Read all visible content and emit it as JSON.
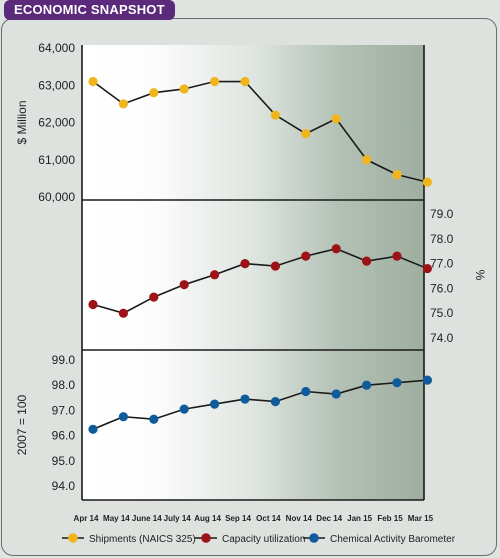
{
  "header": {
    "title": "ECONOMIC SNAPSHOT"
  },
  "chart_data": {
    "type": "line",
    "categories": [
      "Apr 14",
      "May 14",
      "June 14",
      "July 14",
      "Aug 14",
      "Sep 14",
      "Oct 14",
      "Nov 14",
      "Dec 14",
      "Jan 15",
      "Feb 15",
      "Mar 15"
    ],
    "panels": [
      {
        "series_name": "Shipments (NAICS 325)",
        "color": "#f0b51c",
        "axis_side": "left",
        "ylabel": "$ Million",
        "ylim": [
          60000,
          64000
        ],
        "ticks": [
          60000,
          61000,
          62000,
          63000,
          64000
        ],
        "tick_labels": [
          "60,000",
          "61,000",
          "62,000",
          "63,000",
          "64,000"
        ],
        "values": [
          63100,
          62500,
          62800,
          62900,
          63100,
          63100,
          62200,
          61700,
          62100,
          61000,
          60600,
          60400
        ]
      },
      {
        "series_name": "Capacity utilization",
        "color": "#9c1216",
        "axis_side": "right",
        "ylabel": "%",
        "ylim": [
          74.0,
          79.0
        ],
        "ticks": [
          74.0,
          75.0,
          76.0,
          77.0,
          78.0,
          79.0
        ],
        "tick_labels": [
          "74.0",
          "75.0",
          "76.0",
          "77.0",
          "78.0",
          "79.0"
        ],
        "values": [
          75.35,
          75.0,
          75.65,
          76.15,
          76.55,
          77.0,
          76.9,
          77.3,
          77.6,
          77.1,
          77.3,
          76.8
        ]
      },
      {
        "series_name": "Chemical Activity Barometer",
        "color": "#0f5b9c",
        "axis_side": "left",
        "ylabel": "2007 = 100",
        "ylim": [
          94.0,
          99.0
        ],
        "ticks": [
          94.0,
          95.0,
          96.0,
          97.0,
          98.0,
          99.0
        ],
        "tick_labels": [
          "94.0",
          "95.0",
          "96.0",
          "97.0",
          "98.0",
          "99.0"
        ],
        "values": [
          96.25,
          96.75,
          96.65,
          97.05,
          97.25,
          97.45,
          97.35,
          97.75,
          97.65,
          98.0,
          98.1,
          98.2
        ]
      }
    ],
    "legend": {
      "placement": "bottom",
      "entries": [
        "Shipments (NAICS 325)",
        "Capacity utilization",
        "Chemical Activity Barometer"
      ]
    },
    "grid": false
  }
}
